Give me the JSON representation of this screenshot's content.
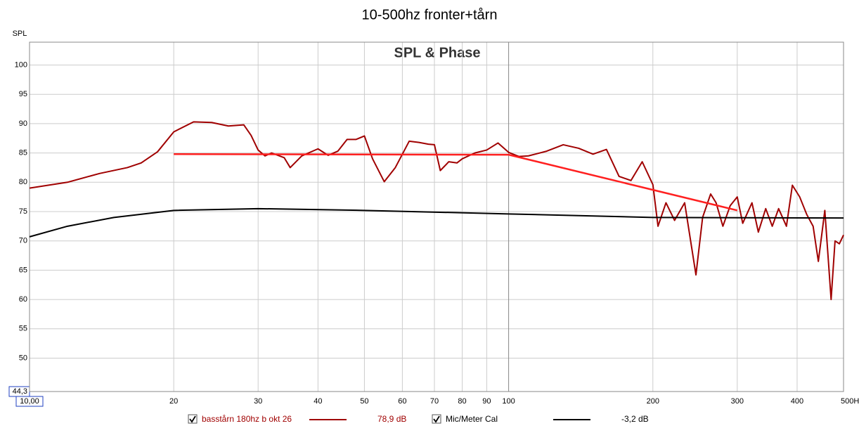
{
  "chart_data": {
    "type": "line",
    "title": "10-500hz fronter+tårn",
    "subtitle": "SPL & Phase",
    "ylabel": "SPL",
    "xscale": "log",
    "grid": true,
    "xlim": [
      10,
      500
    ],
    "ylim": [
      44.3,
      103.9
    ],
    "xticks": [
      {
        "value": 10,
        "label": "10,00"
      },
      20,
      30,
      40,
      50,
      60,
      70,
      80,
      90,
      100,
      200,
      300,
      400,
      {
        "value": 500,
        "label": "500Hz"
      }
    ],
    "yticks": [
      {
        "value": 44.3,
        "label": "44,3"
      },
      50,
      55,
      60,
      65,
      70,
      75,
      80,
      85,
      90,
      95,
      100
    ],
    "series": [
      {
        "name": "basstårn 180hz b okt 26",
        "legend_value": "78,9 dB",
        "color": "#a00000",
        "x": [
          10,
          12,
          14,
          16,
          17.1,
          18.5,
          20,
          22,
          24,
          26,
          28,
          29,
          30,
          31,
          32,
          34,
          35,
          37,
          40,
          42,
          44,
          46,
          48,
          50,
          52,
          55,
          58,
          62,
          65,
          68,
          70,
          72,
          75,
          78,
          80,
          85,
          90,
          95,
          100,
          105,
          110,
          120,
          130,
          140,
          150,
          160,
          170,
          180,
          190,
          200,
          205,
          213,
          222,
          233,
          246,
          254,
          264,
          271,
          280,
          290,
          300,
          308,
          322,
          332,
          344,
          355,
          366,
          380,
          391,
          405,
          419,
          432,
          443,
          457,
          471,
          480,
          490,
          500
        ],
        "values": [
          79.0,
          80.0,
          81.5,
          82.5,
          83.3,
          85.2,
          88.6,
          90.3,
          90.2,
          89.6,
          89.8,
          88.0,
          85.5,
          84.5,
          85.0,
          84.2,
          82.5,
          84.5,
          85.7,
          84.6,
          85.3,
          87.3,
          87.3,
          87.9,
          84.0,
          80.1,
          82.5,
          87.0,
          86.8,
          86.5,
          86.4,
          82.0,
          83.5,
          83.3,
          84.0,
          85.0,
          85.5,
          86.7,
          85.1,
          84.4,
          84.5,
          85.3,
          86.4,
          85.8,
          84.8,
          85.6,
          81.0,
          80.3,
          83.5,
          79.6,
          72.5,
          76.5,
          73.5,
          76.5,
          64.2,
          74.0,
          78.0,
          76.5,
          72.5,
          76.0,
          77.5,
          73.0,
          76.5,
          71.5,
          75.5,
          72.5,
          75.5,
          72.5,
          79.5,
          77.5,
          74.5,
          72.5,
          66.5,
          75.2,
          60.0,
          70.0,
          69.5,
          71.0
        ]
      },
      {
        "name": "Mic/Meter Cal",
        "legend_value": "-3,2 dB",
        "color": "#000000",
        "x": [
          10,
          12,
          15,
          20,
          30,
          50,
          100,
          200,
          500
        ],
        "values": [
          70.7,
          72.5,
          74.0,
          75.2,
          75.5,
          75.2,
          74.6,
          74.0,
          73.9
        ]
      },
      {
        "color": "#ff2020",
        "x": [
          20,
          100,
          300
        ],
        "values": [
          84.8,
          84.7,
          75.2
        ]
      }
    ]
  }
}
